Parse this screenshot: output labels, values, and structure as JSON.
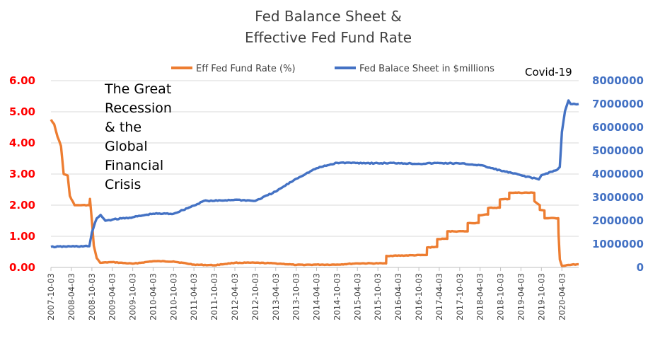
{
  "chart_data": {
    "type": "line",
    "title_lines": [
      "Fed Balance Sheet &",
      "Effective Fed Fund Rate"
    ],
    "legend": {
      "position": "top",
      "items": [
        {
          "label": "Eff Fed Fund Rate (%)",
          "color": "#ed7d31"
        },
        {
          "label": "Fed Balace Sheet in $millions",
          "color": "#4472c4"
        }
      ]
    },
    "y_left": {
      "ticks": [
        "0.00",
        "1.00",
        "2.00",
        "3.00",
        "4.00",
        "5.00",
        "6.00"
      ],
      "range": [
        0,
        6
      ],
      "color": "#ff0000"
    },
    "y_right": {
      "ticks": [
        "0",
        "1000000",
        "2000000",
        "3000000",
        "4000000",
        "5000000",
        "6000000",
        "7000000",
        "8000000"
      ],
      "range": [
        0,
        8000000
      ],
      "color": "#4472c4"
    },
    "x_axis": {
      "range": [
        "2007-10-03",
        "2020-08-31"
      ],
      "tick_labels": [
        "2007-10-03",
        "2008-04-03",
        "2008-10-03",
        "2009-04-03",
        "2009-10-03",
        "2010-04-03",
        "2010-10-03",
        "2011-04-03",
        "2011-10-03",
        "2012-04-03",
        "2012-10-03",
        "2013-04-03",
        "2013-10-03",
        "2014-04-03",
        "2014-10-03",
        "2015-04-03",
        "2015-10-03",
        "2016-04-03",
        "2016-10-03",
        "2017-04-03",
        "2017-10-03",
        "2018-04-03",
        "2018-10-03",
        "2019-04-03",
        "2019-10-03",
        "2020-04-03"
      ]
    },
    "grid": true,
    "annotations": [
      {
        "lines": [
          "The Great",
          "Recession",
          "& the",
          "Global",
          "Financial",
          "Crisis"
        ]
      },
      {
        "lines": [
          "Covid-19"
        ]
      }
    ],
    "series": [
      {
        "name": "Eff Fed Fund Rate (%)",
        "axis": "left",
        "color": "#ed7d31",
        "points": [
          [
            "2007-10-03",
            4.75
          ],
          [
            "2007-11-01",
            4.6
          ],
          [
            "2007-12-01",
            4.2
          ],
          [
            "2008-01-01",
            3.9
          ],
          [
            "2008-01-25",
            3.0
          ],
          [
            "2008-03-01",
            2.95
          ],
          [
            "2008-03-20",
            2.3
          ],
          [
            "2008-05-01",
            2.0
          ],
          [
            "2008-07-01",
            2.0
          ],
          [
            "2008-09-10",
            2.0
          ],
          [
            "2008-09-16",
            2.2
          ],
          [
            "2008-10-03",
            1.5
          ],
          [
            "2008-10-20",
            0.7
          ],
          [
            "2008-11-15",
            0.3
          ],
          [
            "2008-12-16",
            0.15
          ],
          [
            "2009-04-03",
            0.17
          ],
          [
            "2009-10-03",
            0.12
          ],
          [
            "2010-04-03",
            0.2
          ],
          [
            "2010-10-03",
            0.19
          ],
          [
            "2011-04-03",
            0.09
          ],
          [
            "2011-10-03",
            0.07
          ],
          [
            "2012-04-03",
            0.15
          ],
          [
            "2012-10-03",
            0.15
          ],
          [
            "2013-04-03",
            0.13
          ],
          [
            "2013-10-03",
            0.08
          ],
          [
            "2014-04-03",
            0.09
          ],
          [
            "2014-10-03",
            0.09
          ],
          [
            "2015-04-03",
            0.13
          ],
          [
            "2015-12-15",
            0.13
          ],
          [
            "2015-12-17",
            0.37
          ],
          [
            "2016-12-13",
            0.4
          ],
          [
            "2016-12-15",
            0.64
          ],
          [
            "2017-03-15",
            0.66
          ],
          [
            "2017-03-16",
            0.91
          ],
          [
            "2017-06-14",
            0.92
          ],
          [
            "2017-06-15",
            1.16
          ],
          [
            "2017-12-13",
            1.16
          ],
          [
            "2017-12-14",
            1.42
          ],
          [
            "2018-03-21",
            1.43
          ],
          [
            "2018-03-22",
            1.68
          ],
          [
            "2018-06-13",
            1.7
          ],
          [
            "2018-06-14",
            1.91
          ],
          [
            "2018-09-26",
            1.92
          ],
          [
            "2018-09-27",
            2.18
          ],
          [
            "2018-12-19",
            2.2
          ],
          [
            "2018-12-20",
            2.4
          ],
          [
            "2019-07-31",
            2.4
          ],
          [
            "2019-08-01",
            2.13
          ],
          [
            "2019-09-18",
            2.0
          ],
          [
            "2019-09-19",
            1.85
          ],
          [
            "2019-10-30",
            1.83
          ],
          [
            "2019-10-31",
            1.58
          ],
          [
            "2020-03-01",
            1.58
          ],
          [
            "2020-03-04",
            1.09
          ],
          [
            "2020-03-16",
            0.25
          ],
          [
            "2020-04-03",
            0.05
          ],
          [
            "2020-06-01",
            0.08
          ],
          [
            "2020-08-31",
            0.1
          ]
        ]
      },
      {
        "name": "Fed Balace Sheet in $millions",
        "axis": "right",
        "color": "#4472c4",
        "points": [
          [
            "2007-10-03",
            880000
          ],
          [
            "2008-04-03",
            900000
          ],
          [
            "2008-09-10",
            910000
          ],
          [
            "2008-10-03",
            1500000
          ],
          [
            "2008-11-15",
            2100000
          ],
          [
            "2008-12-20",
            2250000
          ],
          [
            "2009-02-01",
            2000000
          ],
          [
            "2009-04-03",
            2050000
          ],
          [
            "2009-10-03",
            2150000
          ],
          [
            "2010-04-03",
            2300000
          ],
          [
            "2010-10-03",
            2300000
          ],
          [
            "2011-04-03",
            2650000
          ],
          [
            "2011-07-01",
            2850000
          ],
          [
            "2011-10-03",
            2850000
          ],
          [
            "2012-04-03",
            2900000
          ],
          [
            "2012-10-03",
            2850000
          ],
          [
            "2013-04-03",
            3250000
          ],
          [
            "2013-10-03",
            3800000
          ],
          [
            "2014-04-03",
            4250000
          ],
          [
            "2014-10-03",
            4480000
          ],
          [
            "2015-04-03",
            4480000
          ],
          [
            "2015-10-03",
            4460000
          ],
          [
            "2016-04-03",
            4470000
          ],
          [
            "2016-10-03",
            4440000
          ],
          [
            "2017-04-03",
            4470000
          ],
          [
            "2017-10-03",
            4450000
          ],
          [
            "2018-04-03",
            4380000
          ],
          [
            "2018-10-03",
            4150000
          ],
          [
            "2019-04-03",
            3950000
          ],
          [
            "2019-09-10",
            3770000
          ],
          [
            "2019-10-03",
            3950000
          ],
          [
            "2020-02-20",
            4180000
          ],
          [
            "2020-03-15",
            4300000
          ],
          [
            "2020-04-03",
            5800000
          ],
          [
            "2020-05-01",
            6700000
          ],
          [
            "2020-06-01",
            7150000
          ],
          [
            "2020-06-20",
            7000000
          ],
          [
            "2020-08-31",
            7000000
          ]
        ]
      }
    ]
  }
}
